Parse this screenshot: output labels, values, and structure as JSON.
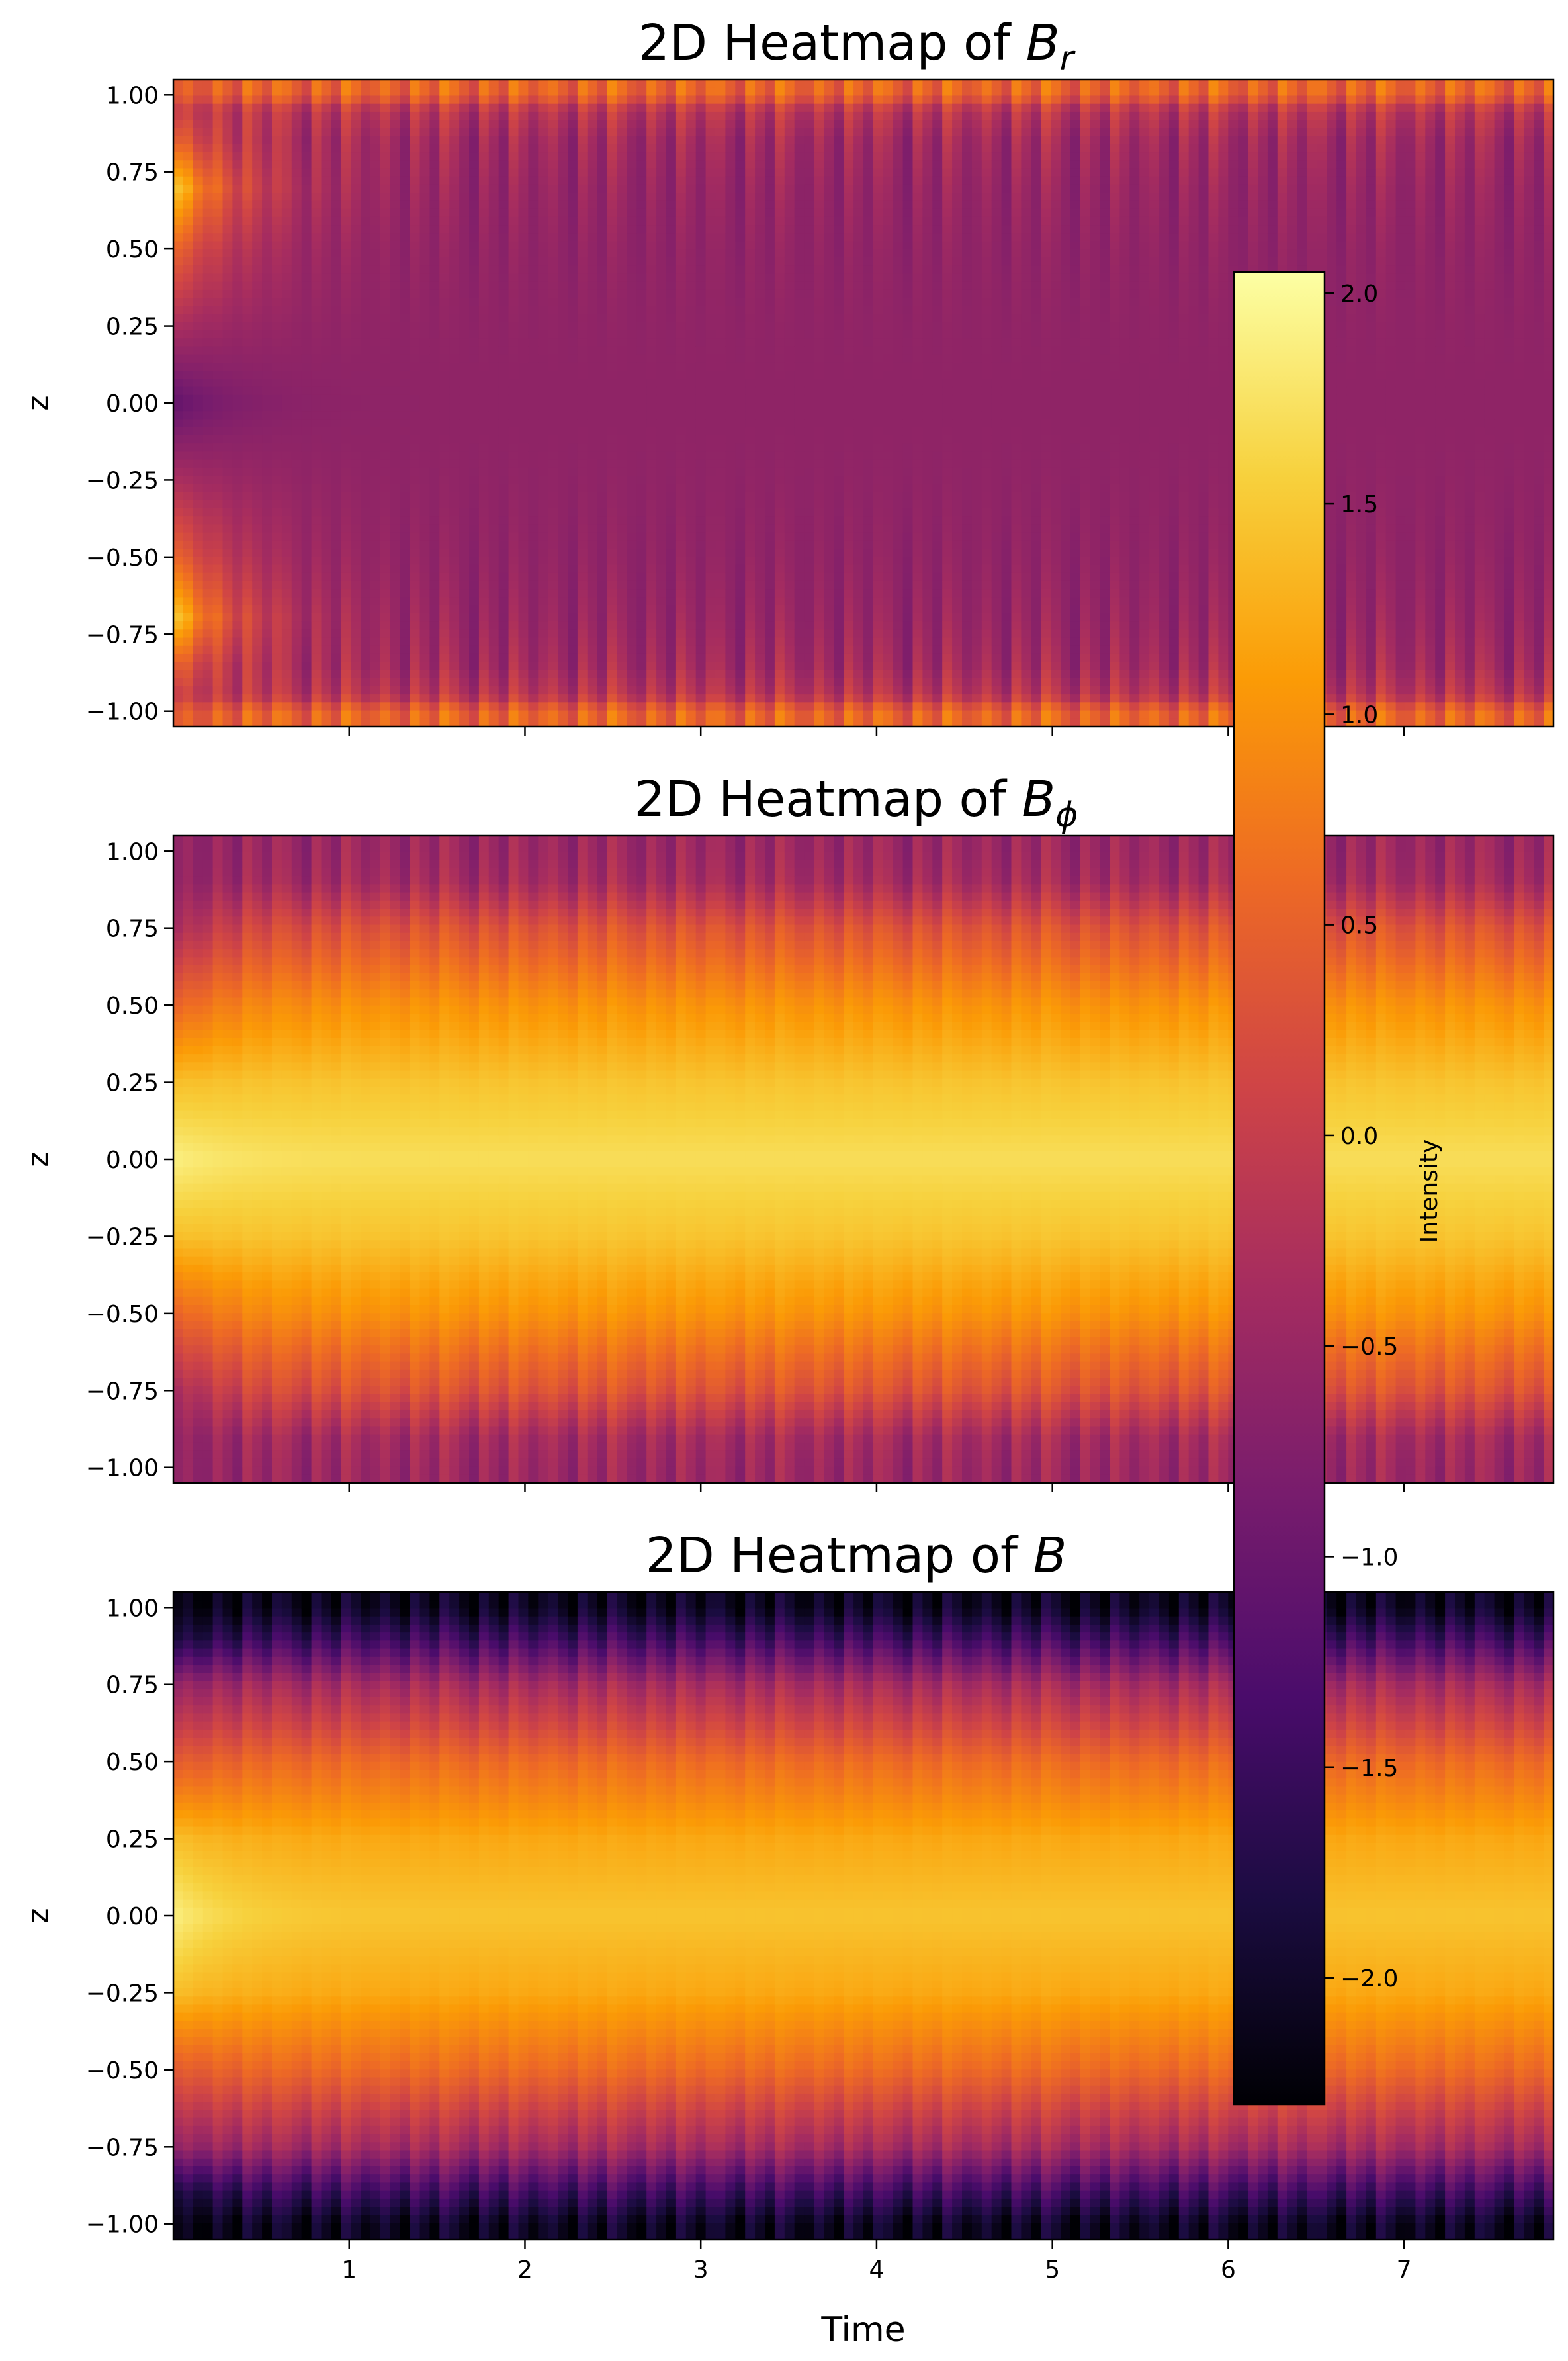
{
  "chart_data": [
    {
      "type": "heatmap",
      "title_text": "2D Heatmap of ",
      "title_symbol": "B",
      "title_subscript": "r",
      "ylabel": "z",
      "xlabel": "",
      "xlim": [
        0.0,
        7.85
      ],
      "ylim": [
        -1.05,
        1.05
      ],
      "yticks": [
        "1.00",
        "0.75",
        "0.50",
        "0.25",
        "0.00",
        "−0.25",
        "−0.50",
        "−0.75",
        "−1.00"
      ],
      "xticks": [],
      "ytick_values": [
        1.0,
        0.75,
        0.5,
        0.25,
        0.0,
        -0.25,
        -0.5,
        -0.75,
        -1.0
      ],
      "xtick_values": [
        1,
        2,
        3,
        4,
        5,
        6,
        7
      ],
      "colormap": "inferno",
      "profile": {
        "z": [
          -1.0,
          -0.95,
          -0.85,
          -0.7,
          -0.5,
          -0.25,
          0.0,
          0.25,
          0.5,
          0.7,
          0.85,
          0.95,
          1.0
        ],
        "initial": [
          0.4,
          0.0,
          0.5,
          1.6,
          0.6,
          -0.3,
          -1.1,
          -0.3,
          0.6,
          1.6,
          0.5,
          0.0,
          0.4
        ],
        "steady": [
          0.5,
          -0.2,
          -0.45,
          -0.55,
          -0.6,
          -0.6,
          -0.6,
          -0.6,
          -0.6,
          -0.55,
          -0.45,
          -0.2,
          0.5
        ]
      },
      "stripe_period": 0.19,
      "stripe_amplitude": 0.8
    },
    {
      "type": "heatmap",
      "title_text": "2D Heatmap of ",
      "title_symbol": "B",
      "title_subscript": "ϕ",
      "ylabel": "z",
      "xlabel": "",
      "xlim": [
        0.0,
        7.85
      ],
      "ylim": [
        -1.05,
        1.05
      ],
      "yticks": [
        "1.00",
        "0.75",
        "0.50",
        "0.25",
        "0.00",
        "−0.25",
        "−0.50",
        "−0.75",
        "−1.00"
      ],
      "xticks": [],
      "ytick_values": [
        1.0,
        0.75,
        0.5,
        0.25,
        0.0,
        -0.25,
        -0.5,
        -0.75,
        -1.0
      ],
      "xtick_values": [
        1,
        2,
        3,
        4,
        5,
        6,
        7
      ],
      "colormap": "inferno",
      "profile": {
        "z": [
          -1.0,
          -0.9,
          -0.75,
          -0.5,
          -0.25,
          0.0,
          0.25,
          0.5,
          0.75,
          0.9,
          1.0
        ],
        "initial": [
          -0.6,
          -0.6,
          -0.4,
          0.5,
          1.4,
          1.9,
          1.4,
          0.5,
          -0.4,
          -0.6,
          -0.6
        ],
        "steady": [
          -0.5,
          -0.4,
          0.3,
          1.0,
          1.45,
          1.7,
          1.45,
          1.0,
          0.3,
          -0.4,
          -0.5
        ]
      },
      "stripe_period": 0.19,
      "stripe_amplitude": 0.6
    },
    {
      "type": "heatmap",
      "title_text": "2D Heatmap of ",
      "title_symbol": "B",
      "title_subscript": "",
      "ylabel": "z",
      "xlabel": "Time",
      "xlim": [
        0.0,
        7.85
      ],
      "ylim": [
        -1.05,
        1.05
      ],
      "yticks": [
        "1.00",
        "0.75",
        "0.50",
        "0.25",
        "0.00",
        "−0.25",
        "−0.50",
        "−0.75",
        "−1.00"
      ],
      "xticks": [
        "1",
        "2",
        "3",
        "4",
        "5",
        "6",
        "7"
      ],
      "ytick_values": [
        1.0,
        0.75,
        0.5,
        0.25,
        0.0,
        -0.25,
        -0.5,
        -0.75,
        -1.0
      ],
      "xtick_values": [
        1,
        2,
        3,
        4,
        5,
        6,
        7
      ],
      "colormap": "inferno",
      "profile": {
        "z": [
          -1.0,
          -0.9,
          -0.75,
          -0.5,
          -0.25,
          0.0,
          0.25,
          0.5,
          0.75,
          0.9,
          1.0
        ],
        "initial": [
          -2.2,
          -1.9,
          -0.6,
          0.4,
          1.4,
          1.9,
          1.4,
          0.4,
          -0.6,
          -1.9,
          -2.2
        ],
        "steady": [
          -2.1,
          -1.5,
          -0.4,
          0.6,
          1.2,
          1.45,
          1.2,
          0.6,
          -0.4,
          -1.5,
          -2.1
        ]
      },
      "stripe_period": 0.19,
      "stripe_amplitude": 0.7
    }
  ],
  "colorbar": {
    "label": "Intensity",
    "range": [
      -2.3,
      2.05
    ],
    "ticks": [
      "2.0",
      "1.5",
      "1.0",
      "0.5",
      "0.0",
      "−0.5",
      "−1.0",
      "−1.5",
      "−2.0"
    ],
    "tick_values": [
      2.0,
      1.5,
      1.0,
      0.5,
      0.0,
      -0.5,
      -1.0,
      -1.5,
      -2.0
    ],
    "colormap": "inferno"
  },
  "colormap_stops": [
    "#000004",
    "#1b0c41",
    "#4a0c6b",
    "#781c6d",
    "#a52c60",
    "#cf4446",
    "#ed6925",
    "#fb9b06",
    "#f7d13d",
    "#fcffa4"
  ]
}
